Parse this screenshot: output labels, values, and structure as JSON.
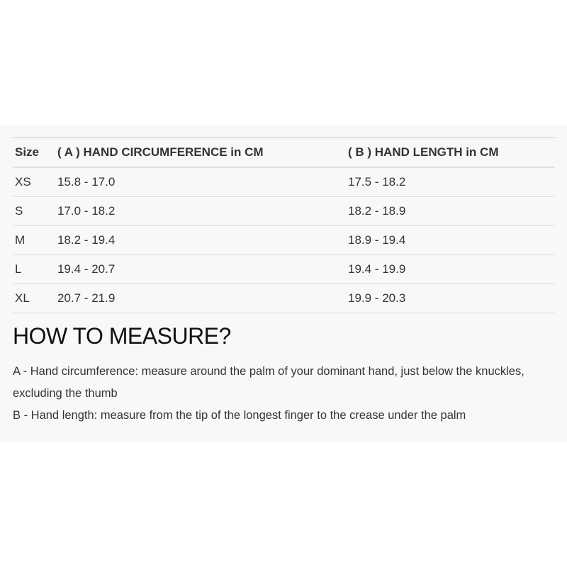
{
  "table": {
    "headers": [
      "Size",
      "( A ) HAND CIRCUMFERENCE in CM",
      "( B ) HAND LENGTH in CM"
    ],
    "rows": [
      [
        "XS",
        "15.8 - 17.0",
        "17.5 - 18.2"
      ],
      [
        "S",
        "17.0 - 18.2",
        "18.2 - 18.9"
      ],
      [
        "M",
        "18.2 - 19.4",
        "18.9 - 19.4"
      ],
      [
        "L",
        "19.4 - 20.7",
        "19.4 - 19.9"
      ],
      [
        "XL",
        "20.7 - 21.9",
        "19.9 - 20.3"
      ]
    ]
  },
  "measure": {
    "heading": "HOW TO MEASURE?",
    "line_a": "A - Hand circumference: measure around the palm of your dominant hand, just below the knuckles, excluding the thumb",
    "line_b": "B - Hand length: measure from the tip of the longest finger to the crease under the palm"
  }
}
